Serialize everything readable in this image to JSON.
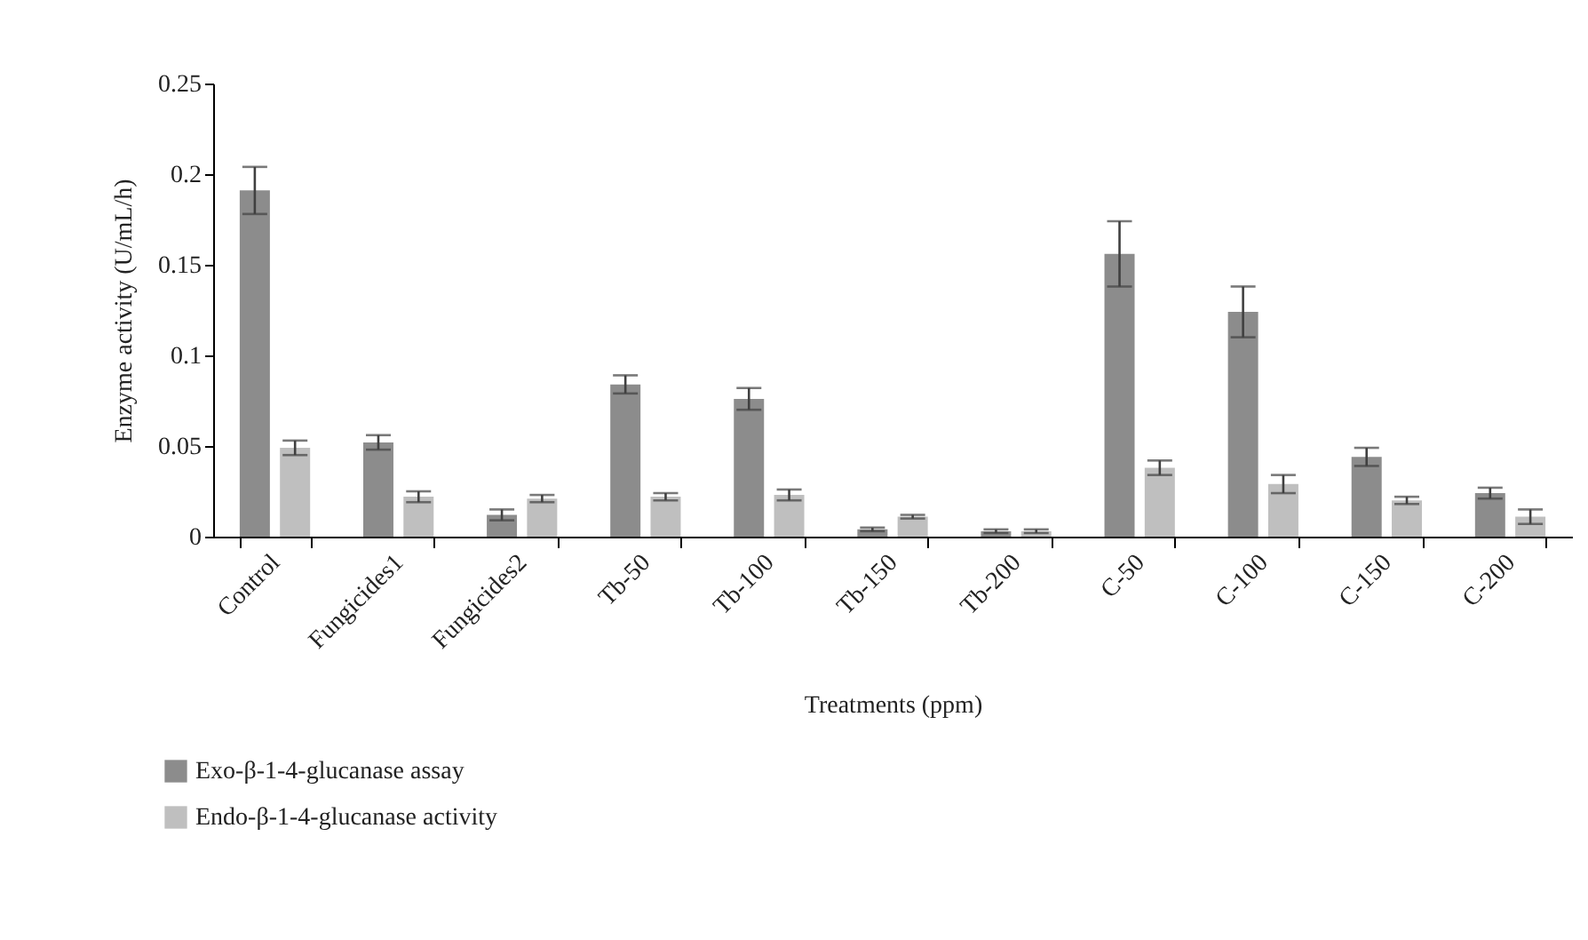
{
  "chart_data": {
    "type": "bar",
    "xlabel": "Treatments (ppm)",
    "ylabel": "Enzyme activity (U/mL/h)",
    "categories": [
      "Control",
      "Fungicides1",
      "Fungicides2",
      "Tb-50",
      "Tb-100",
      "Tb-150",
      "Tb-200",
      "C-50",
      "C-100",
      "C-150",
      "C-200"
    ],
    "series": [
      {
        "name": "Exo-β-1-4-glucanase assay",
        "color": "#8c8c8c",
        "values": [
          0.191,
          0.052,
          0.012,
          0.084,
          0.076,
          0.004,
          0.003,
          0.156,
          0.124,
          0.044,
          0.024
        ],
        "errors": [
          0.013,
          0.004,
          0.003,
          0.005,
          0.006,
          0.001,
          0.001,
          0.018,
          0.014,
          0.005,
          0.003
        ]
      },
      {
        "name": "Endo-β-1-4-glucanase activity",
        "color": "#bfbfbf",
        "values": [
          0.049,
          0.022,
          0.021,
          0.022,
          0.023,
          0.011,
          0.003,
          0.038,
          0.029,
          0.02,
          0.011
        ],
        "errors": [
          0.004,
          0.003,
          0.002,
          0.002,
          0.003,
          0.001,
          0.001,
          0.004,
          0.005,
          0.002,
          0.004
        ]
      }
    ],
    "ylim": [
      0,
      0.25
    ],
    "yticks": [
      0,
      0.05,
      0.1,
      0.15,
      0.2,
      0.25
    ],
    "grid": false,
    "legend": "bottom left"
  }
}
